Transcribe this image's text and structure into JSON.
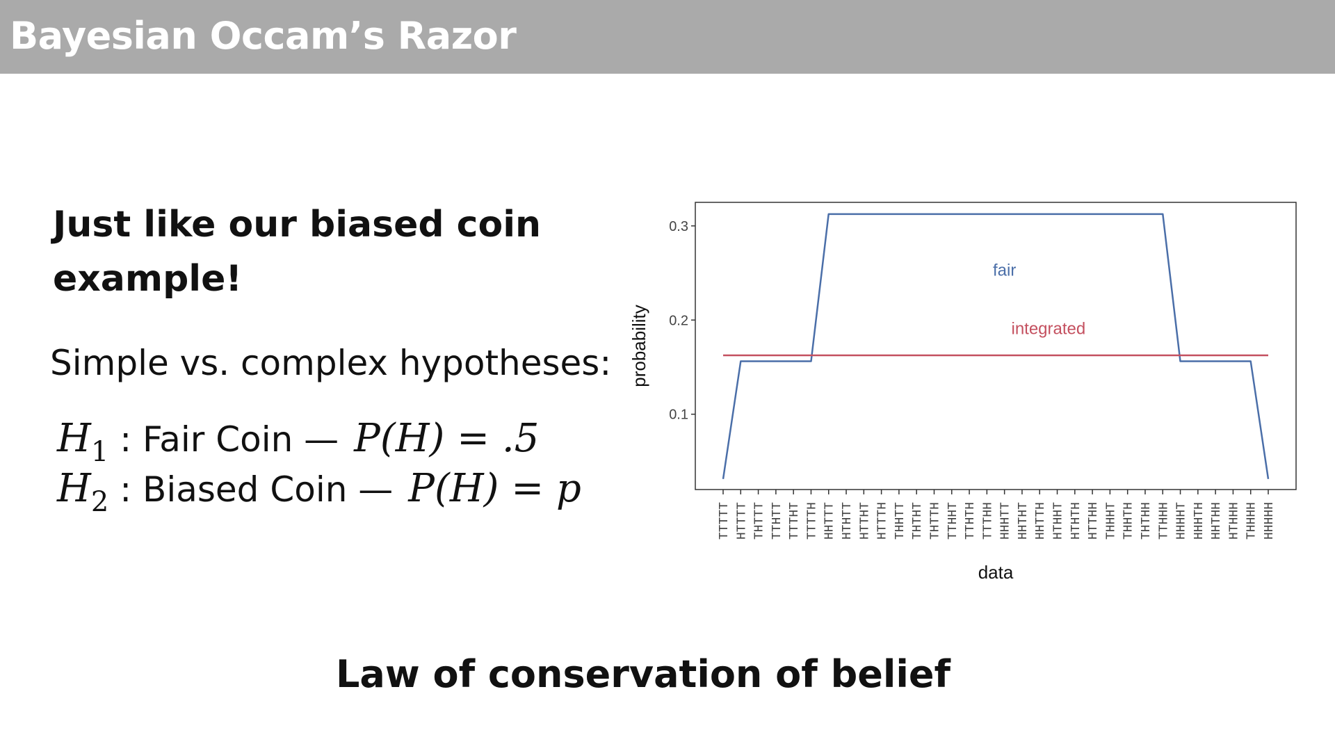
{
  "header": {
    "title": "Bayesian Occam’s Razor"
  },
  "content": {
    "heading": "Just like our biased coin example!",
    "subheading": "Simple vs. complex hypotheses:",
    "hypotheses": [
      {
        "symbol": "H",
        "index": "1",
        "description": ": Fair Coin —",
        "formula": "P(H) = .5"
      },
      {
        "symbol": "H",
        "index": "2",
        "description": ": Biased Coin —",
        "formula": "P(H) = p"
      }
    ],
    "footer": "Law of conservation of belief"
  },
  "colors": {
    "fair": "#4a6ea8",
    "integrated": "#c4505f",
    "axis": "#333333",
    "tick_label": "#444444"
  },
  "chart_data": {
    "type": "line",
    "xlabel": "data",
    "ylabel": "probability",
    "yticks": [
      0.1,
      0.2,
      0.3
    ],
    "ylim": [
      0.02,
      0.325
    ],
    "grid": false,
    "legend": "inline labels",
    "categories": [
      "TTTTT",
      "HTTTT",
      "THTTT",
      "TTHTT",
      "TTTHT",
      "TTTTH",
      "HHTTT",
      "HTHTT",
      "HTTHT",
      "HTTTH",
      "THHTT",
      "THTHT",
      "THTTH",
      "TTHHT",
      "TTHTH",
      "TTTHH",
      "HHHTT",
      "HHTHT",
      "HHTTH",
      "HTHHT",
      "HTHTH",
      "HTTHH",
      "THHHT",
      "THHTH",
      "THTHH",
      "TTHHH",
      "HHHHT",
      "HHHTH",
      "HHTHH",
      "HTHHH",
      "THHHH",
      "HHHHH"
    ],
    "series": [
      {
        "name": "fair",
        "label_at": {
          "x": 16,
          "y": 0.247
        },
        "values": [
          0.03125,
          0.15625,
          0.15625,
          0.15625,
          0.15625,
          0.15625,
          0.3125,
          0.3125,
          0.3125,
          0.3125,
          0.3125,
          0.3125,
          0.3125,
          0.3125,
          0.3125,
          0.3125,
          0.3125,
          0.3125,
          0.3125,
          0.3125,
          0.3125,
          0.3125,
          0.3125,
          0.3125,
          0.3125,
          0.3125,
          0.15625,
          0.15625,
          0.15625,
          0.15625,
          0.15625,
          0.03125
        ]
      },
      {
        "name": "integrated",
        "label_at": {
          "x": 18.5,
          "y": 0.185
        },
        "values": [
          0.1625,
          0.1625,
          0.1625,
          0.1625,
          0.1625,
          0.1625,
          0.1625,
          0.1625,
          0.1625,
          0.1625,
          0.1625,
          0.1625,
          0.1625,
          0.1625,
          0.1625,
          0.1625,
          0.1625,
          0.1625,
          0.1625,
          0.1625,
          0.1625,
          0.1625,
          0.1625,
          0.1625,
          0.1625,
          0.1625,
          0.1625,
          0.1625,
          0.1625,
          0.1625,
          0.1625,
          0.1625
        ]
      }
    ]
  }
}
